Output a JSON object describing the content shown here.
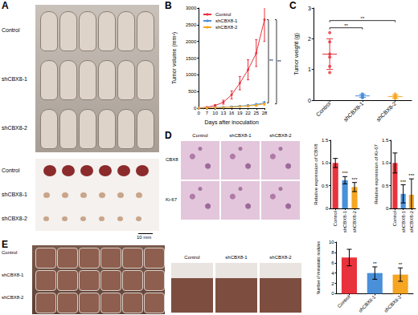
{
  "figure": {
    "panel_letters": [
      "A",
      "B",
      "C",
      "D",
      "E"
    ],
    "mice_photo": {
      "row_labels": [
        "Control",
        "shCBX8-1",
        "shCBX8-2"
      ]
    },
    "tumor_photo": {
      "row_labels": [
        "Control",
        "shCBX8-1",
        "shCBX8-2"
      ],
      "scale_bar": "10 mm"
    },
    "ihc_images": {
      "column_labels": [
        "Control",
        "shCBX8-1",
        "shCBX8-2"
      ],
      "row_labels": [
        "CBX8",
        "Ki-67"
      ]
    },
    "metastasis_photo": {
      "row_labels": [
        "Control",
        "shCBX8-1",
        "shCBX8-2"
      ]
    },
    "metastasis_closeups": {
      "column_labels": [
        "Control",
        "shCBX8-1",
        "shCBX8-2"
      ]
    }
  },
  "chart_data": [
    {
      "type": "line",
      "x_label": "Days after inoculation",
      "y_label": "Tumor volume (mm³)",
      "categories": [
        0,
        7,
        10,
        13,
        16,
        19,
        22,
        25,
        28
      ],
      "series": [
        {
          "name": "Control",
          "color": "#e8323c",
          "values": [
            0,
            30,
            80,
            180,
            400,
            750,
            1150,
            1650,
            2650
          ],
          "errors": [
            0,
            10,
            30,
            60,
            120,
            200,
            300,
            400,
            650
          ]
        },
        {
          "name": "shCBX8-1",
          "color": "#4a90d9",
          "values": [
            0,
            10,
            20,
            30,
            45,
            60,
            80,
            110,
            160
          ],
          "errors": [
            0,
            5,
            8,
            10,
            15,
            20,
            25,
            30,
            40
          ]
        },
        {
          "name": "shCBX8-2",
          "color": "#f5a623",
          "values": [
            0,
            8,
            15,
            25,
            35,
            50,
            65,
            90,
            130
          ],
          "errors": [
            0,
            5,
            8,
            10,
            15,
            20,
            25,
            30,
            40
          ]
        }
      ],
      "marker": "circle",
      "legend": "upper left",
      "grid": false,
      "ylim": [
        0,
        3000
      ],
      "yticks": [
        0,
        500,
        1000,
        1500,
        2000,
        2500,
        3000
      ],
      "comparisons": [
        {
          "between": [
            "Control",
            "shCBX8-1"
          ],
          "label": "**"
        },
        {
          "between": [
            "Control",
            "shCBX8-2"
          ],
          "label": "**"
        }
      ]
    },
    {
      "type": "scatter",
      "y_label": "Tumor weight (g)",
      "categories": [
        "Control",
        "shCBX8-1",
        "shCBX8-2"
      ],
      "colors": [
        "#e8323c",
        "#4a90d9",
        "#f5a623"
      ],
      "points": [
        [
          0.9,
          1.1,
          1.4,
          1.5,
          1.9,
          2.2
        ],
        [
          0.08,
          0.1,
          0.12,
          0.15,
          0.18,
          0.2
        ],
        [
          0.05,
          0.08,
          0.1,
          0.12,
          0.15,
          0.2
        ]
      ],
      "means": [
        1.5,
        0.14,
        0.12
      ],
      "errors": [
        0.5,
        0.05,
        0.05
      ],
      "marker": "circle",
      "grid": false,
      "ylim": [
        0,
        3
      ],
      "yticks": [
        0,
        1,
        2,
        3
      ],
      "comparisons": [
        {
          "between": [
            "Control",
            "shCBX8-1"
          ],
          "label": "**"
        },
        {
          "between": [
            "Control",
            "shCBX8-2"
          ],
          "label": "**"
        }
      ]
    },
    {
      "type": "bar",
      "y_label": "Relative expression of CBX8",
      "categories": [
        "Control",
        "shCBX8-1",
        "shCBX8-2"
      ],
      "values": [
        1.0,
        0.62,
        0.47
      ],
      "errors": [
        0.1,
        0.08,
        0.1
      ],
      "colors": [
        "#e8323c",
        "#4a90d9",
        "#f5a623"
      ],
      "significance": [
        null,
        "***",
        "***"
      ],
      "grid": false,
      "ylim": [
        0,
        1.5
      ],
      "yticks": [
        0,
        0.5,
        {
          "value": 1,
          "label": "1.0"
        },
        1.5
      ]
    },
    {
      "type": "bar",
      "y_label": "Relative expression of Ki-67",
      "categories": [
        "Control",
        "shCBX8-1",
        "shCBX8-2"
      ],
      "values": [
        1.0,
        0.32,
        0.3
      ],
      "errors": [
        0.22,
        0.2,
        0.35
      ],
      "colors": [
        "#e8323c",
        "#4a90d9",
        "#f5a623"
      ],
      "significance": [
        null,
        "***",
        "***"
      ],
      "grid": false,
      "ylim": [
        0,
        1.5
      ],
      "yticks": [
        0,
        0.5,
        {
          "value": 1,
          "label": "1.0"
        },
        1.5
      ]
    },
    {
      "type": "bar",
      "y_label": "Number of metastatic nodules",
      "categories": [
        "Control",
        "shCBX8-1",
        "shCBX8-2"
      ],
      "values": [
        7,
        4,
        3.7
      ],
      "errors": [
        1.6,
        1.2,
        1.3
      ],
      "colors": [
        "#e8323c",
        "#4a90d9",
        "#f5a623"
      ],
      "significance": [
        null,
        "**",
        "**"
      ],
      "grid": false,
      "ylim": [
        0,
        10
      ],
      "yticks": [
        0,
        2,
        4,
        6,
        8,
        10
      ]
    }
  ]
}
